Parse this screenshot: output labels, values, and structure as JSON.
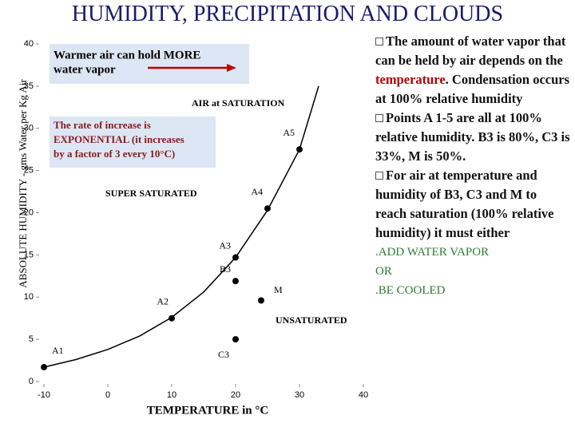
{
  "title": "HUMIDITY, PRECIPITATION AND CLOUDS",
  "notes": {
    "intro": [
      "The amount of water vapor that can be held by air depends on the ",
      "temperature",
      ". Condensation occurs at 100% relative humidity"
    ],
    "points": "Points A 1-5 are all at 100% relative humidity. B3 is 80%, C3 is 33%, M is 50%.",
    "reach": "For air at temperature and humidity of B3, C3 and M to reach saturation (100% relative humidity) it must either",
    "options": [
      ".ADD WATER VAPOR",
      "OR",
      ".BE COOLED"
    ]
  },
  "chart_data": {
    "type": "line",
    "xlabel": "TEMPERATURE in °C",
    "ylabel": "ABSOLUTE HUMIDITY - gms Water per Kg Air",
    "x": [
      -10,
      -5,
      0,
      5,
      10,
      15,
      20,
      25,
      30,
      33
    ],
    "series": [
      {
        "color": "#000000",
        "values": [
          1.7,
          2.6,
          3.8,
          5.4,
          7.6,
          10.6,
          14.7,
          20.3,
          27.5,
          35
        ]
      }
    ],
    "points": [
      {
        "label": "A1",
        "x": -10,
        "y": 1.7
      },
      {
        "label": "A2",
        "x": 10,
        "y": 7.5
      },
      {
        "label": "A3",
        "x": 20,
        "y": 14.7
      },
      {
        "label": "A4",
        "x": 25,
        "y": 20.5
      },
      {
        "label": "A5",
        "x": 30,
        "y": 27.5
      },
      {
        "label": "B3",
        "x": 20,
        "y": 11.9
      },
      {
        "label": "C3",
        "x": 20,
        "y": 5
      },
      {
        "label": "M",
        "x": 24,
        "y": 9.6
      }
    ],
    "annotations": [
      [
        "Warmer air can hold MORE",
        "water vapor"
      ],
      [
        "AIR at SATURATION"
      ],
      [
        "The rate of increase is",
        "EXPONENTIAL (it increases",
        "by a factor of 3 every 10°C)"
      ],
      [
        "SUPER SATURATED"
      ],
      [
        "UNSATURATED"
      ]
    ],
    "xlim": [
      -10,
      40
    ],
    "ylim": [
      0,
      40
    ],
    "xticks": [
      -10,
      0,
      10,
      20,
      30,
      40
    ],
    "yticks": [
      0,
      5,
      10,
      15,
      20,
      25,
      30,
      35,
      40
    ]
  }
}
